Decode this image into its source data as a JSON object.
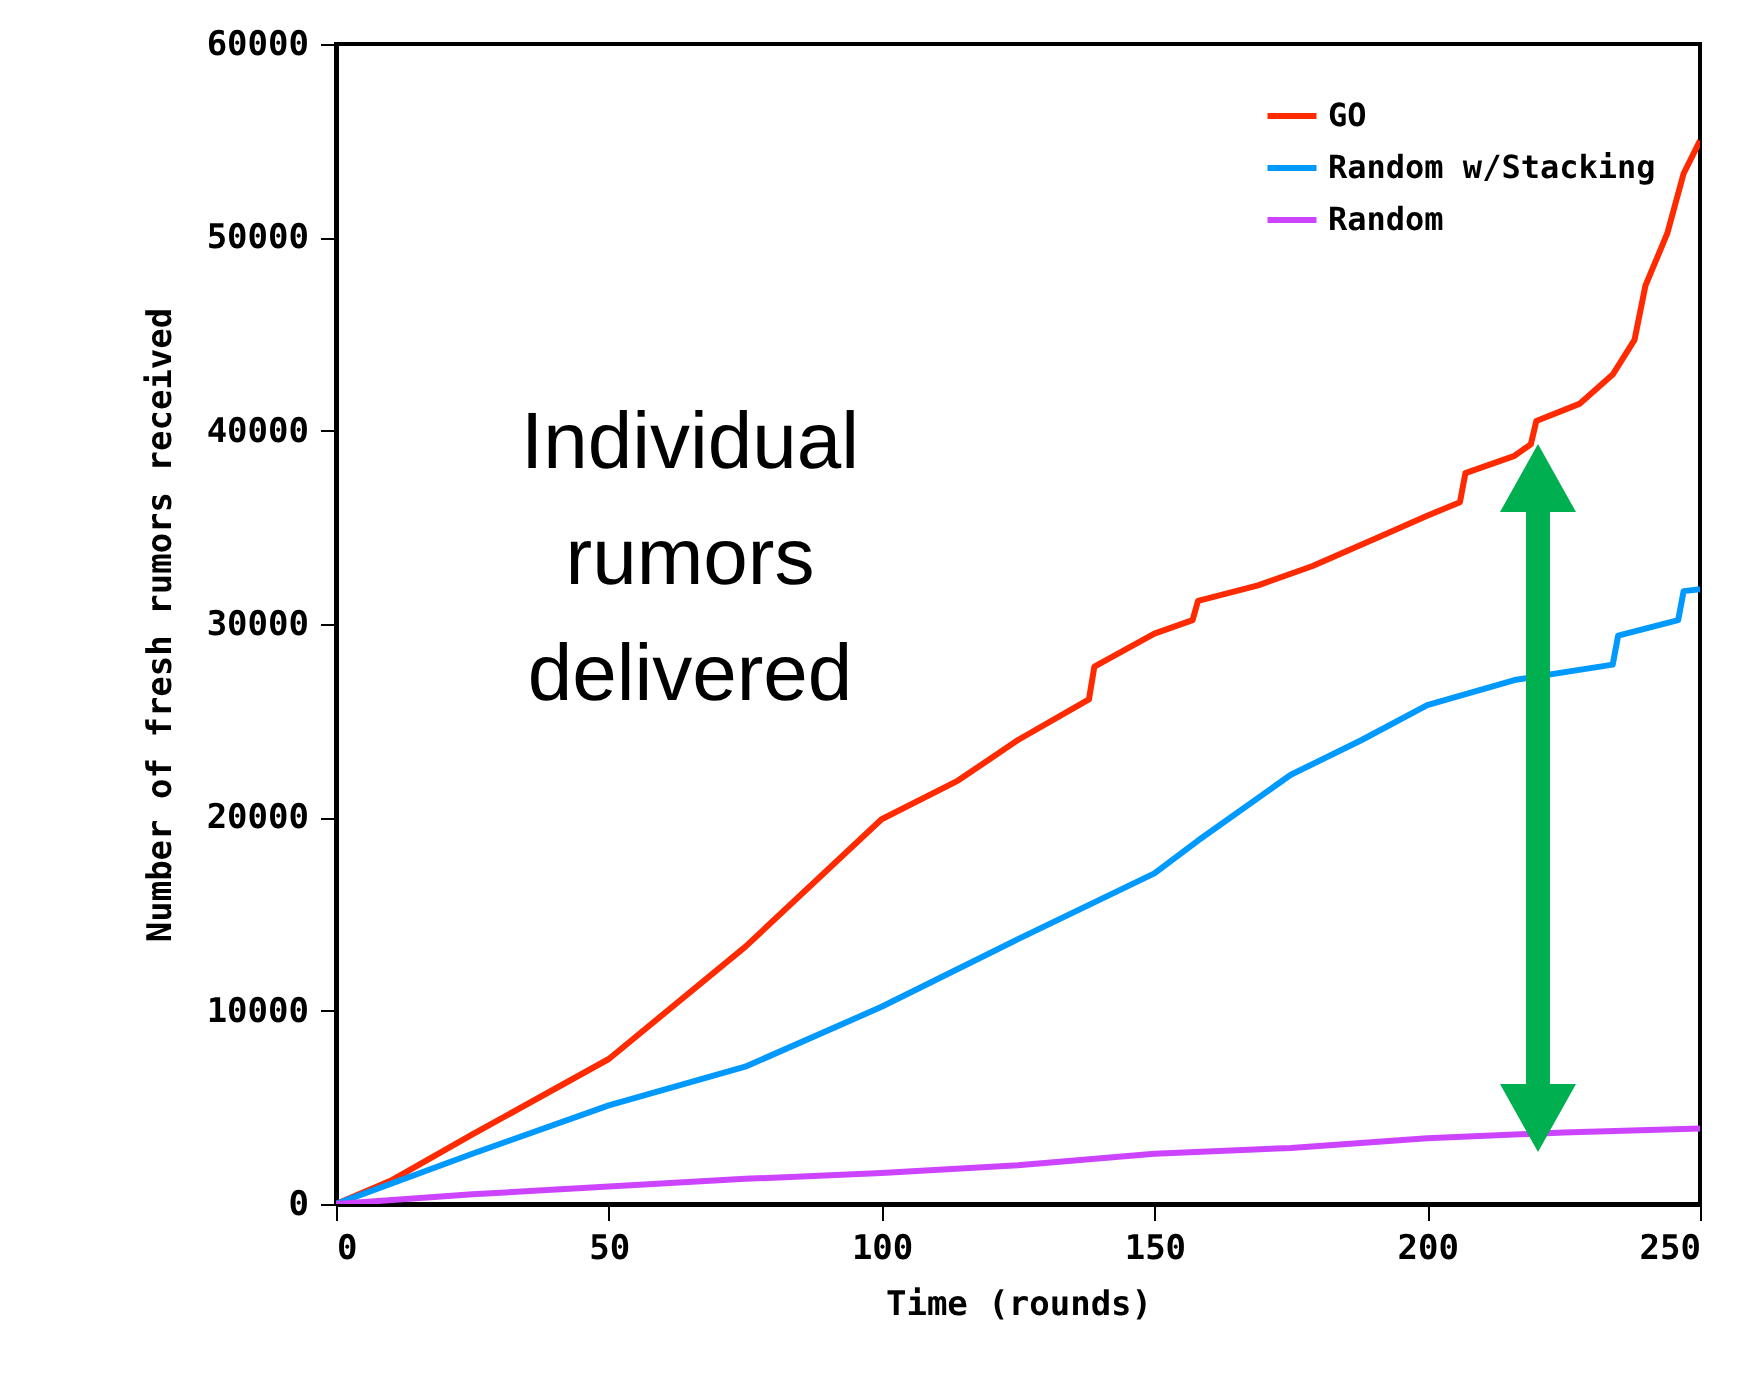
{
  "chart_data": {
    "type": "line",
    "xlabel": "Time (rounds)",
    "ylabel": "Number of fresh rumors received",
    "xlim": [
      0,
      250
    ],
    "xticks": [
      0,
      50,
      100,
      150,
      200,
      250
    ],
    "ylim": [
      0,
      60000
    ],
    "yticks": [
      0,
      10000,
      20000,
      30000,
      40000,
      50000,
      60000
    ],
    "legend": "top right",
    "annotations": [
      "Individual rumors delivered"
    ],
    "series": [
      {
        "name": "GO",
        "color": "#ff2a00",
        "x": [
          0,
          10,
          25,
          50,
          75,
          100,
          114,
          125,
          138,
          139,
          150,
          157,
          158,
          169,
          179,
          192,
          200,
          206,
          207,
          216,
          219,
          220,
          228,
          234,
          238,
          240,
          244,
          247,
          250
        ],
        "values": [
          0,
          1200,
          3600,
          7500,
          13300,
          19900,
          21900,
          24000,
          26100,
          27800,
          29500,
          30200,
          31200,
          32000,
          33000,
          34600,
          35600,
          36300,
          37800,
          38700,
          39300,
          40500,
          41400,
          42900,
          44700,
          47500,
          50200,
          53300,
          55000
        ]
      },
      {
        "name": "Random w/Stacking",
        "color": "#0099ff",
        "x": [
          0,
          25,
          50,
          75,
          100,
          125,
          150,
          158,
          175,
          188,
          200,
          216,
          234,
          235,
          246,
          247,
          250
        ],
        "values": [
          0,
          2600,
          5100,
          7100,
          10200,
          13700,
          17100,
          18800,
          22200,
          24000,
          25800,
          27100,
          27900,
          29400,
          30200,
          31700,
          31800
        ]
      },
      {
        "name": "Random",
        "color": "#cc44ff",
        "x": [
          0,
          25,
          50,
          75,
          100,
          125,
          150,
          175,
          200,
          225,
          250
        ],
        "values": [
          0,
          500,
          900,
          1300,
          1600,
          2000,
          2600,
          2900,
          3400,
          3700,
          3900
        ]
      }
    ]
  }
}
